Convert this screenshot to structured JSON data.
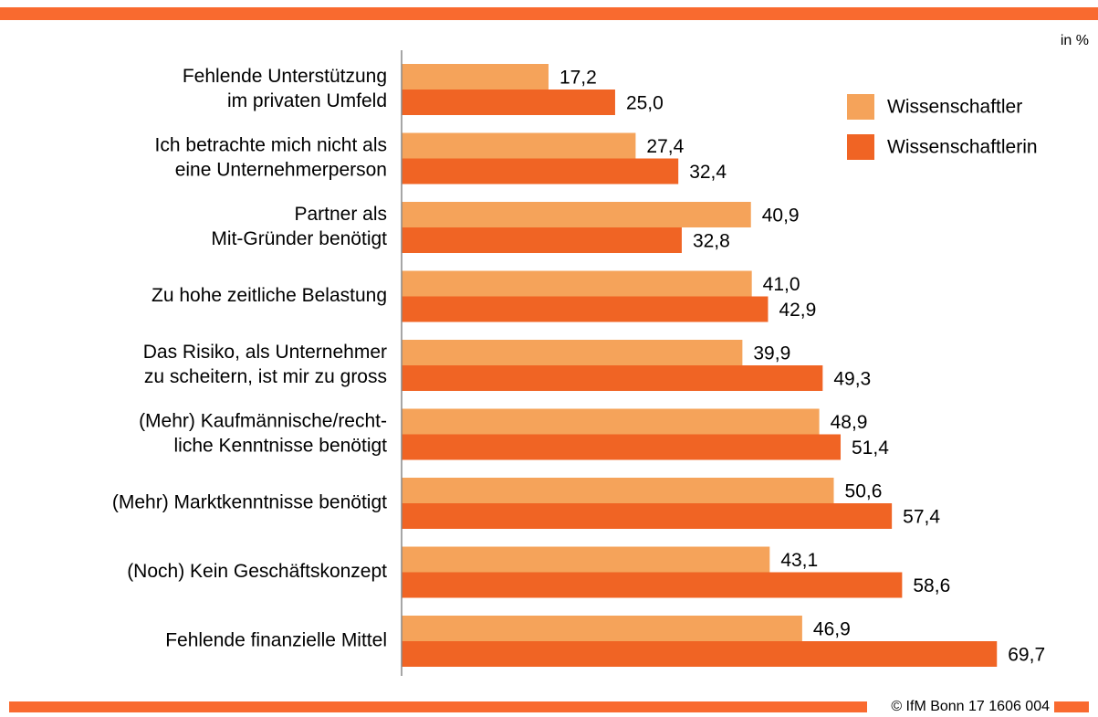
{
  "chart_data": {
    "type": "barh",
    "unit_label": "in %",
    "footer": "© IfM Bonn 17 1606 004",
    "categories": [
      [
        "Fehlende Unterstützung",
        "im privaten Umfeld"
      ],
      [
        "Ich betrachte mich nicht als",
        "eine Unternehmerperson"
      ],
      [
        "Partner als",
        "Mit-Gründer benötigt"
      ],
      [
        "Zu hohe zeitliche Belastung"
      ],
      [
        "Das Risiko, als Unternehmer",
        "zu scheitern, ist mir zu gross"
      ],
      [
        "(Mehr) Kaufmännische/recht-",
        "liche Kenntnisse benötigt"
      ],
      [
        "(Mehr) Marktkenntnisse benötigt"
      ],
      [
        "(Noch) Kein Geschäftskonzept"
      ],
      [
        "Fehlende finanzielle Mittel"
      ]
    ],
    "series": [
      {
        "name": "Wissenschaftler",
        "color": "#f5a35a",
        "values": [
          17.2,
          27.4,
          40.9,
          41.0,
          39.9,
          48.9,
          50.6,
          43.1,
          46.9
        ],
        "value_labels": [
          "17,2",
          "27,4",
          "40,9",
          "41,0",
          "39,9",
          "48,9",
          "50,6",
          "43,1",
          "46,9"
        ]
      },
      {
        "name": "Wissenschaftlerin",
        "color": "#f06424",
        "values": [
          25.0,
          32.4,
          32.8,
          42.9,
          49.3,
          51.4,
          57.4,
          58.6,
          69.7
        ],
        "value_labels": [
          "25,0",
          "32,4",
          "32,8",
          "42,9",
          "49,3",
          "51,4",
          "57,4",
          "58,6",
          "69,7"
        ]
      }
    ],
    "xlim": [
      0,
      81
    ],
    "legend": "upper right",
    "accent_color": "#f96a2f"
  }
}
